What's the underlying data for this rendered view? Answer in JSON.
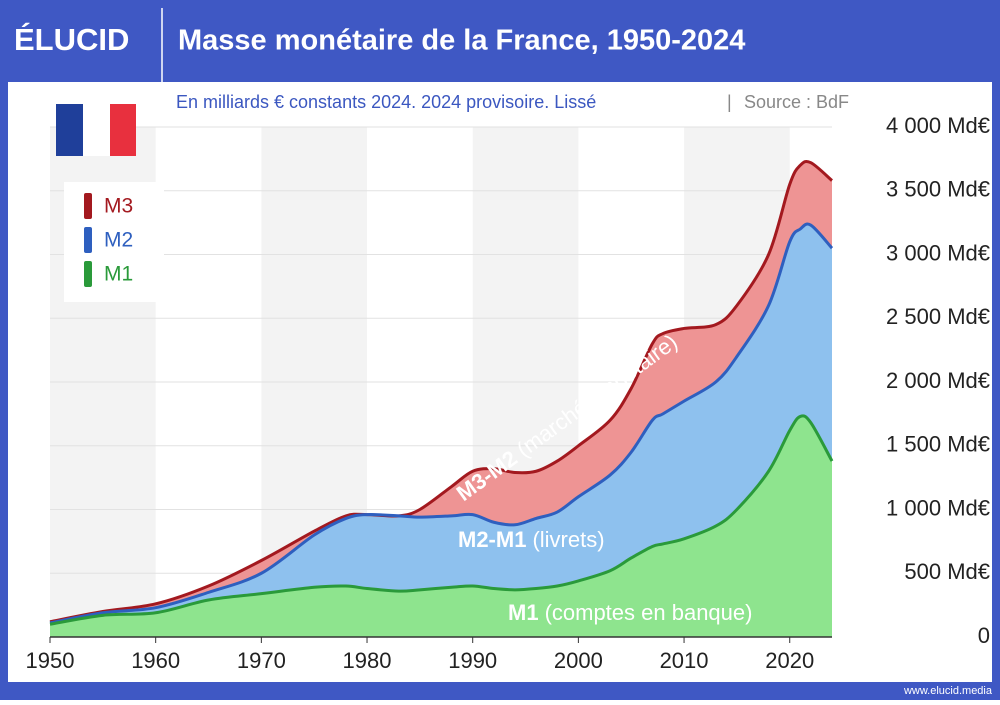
{
  "logo": "ÉLUCID",
  "chart_data": {
    "type": "area",
    "title": "Masse monétaire de la France, 1950-2024",
    "subtitle": "En milliards € constants 2024. 2024 provisoire. Lissé",
    "separator": "|",
    "source": "Source : BdF",
    "x": [
      1950,
      1955,
      1960,
      1965,
      1970,
      1975,
      1978,
      1980,
      1983,
      1985,
      1988,
      1990,
      1992,
      1994,
      1996,
      1998,
      2000,
      2003,
      2005,
      2007,
      2008,
      2010,
      2013,
      2015,
      2018,
      2020,
      2021,
      2022,
      2024
    ],
    "xlim": [
      1950,
      2024
    ],
    "xticks": [
      1950,
      1960,
      1970,
      1980,
      1990,
      2000,
      2010,
      2020
    ],
    "ylim": [
      0,
      4000
    ],
    "yticks": [
      0,
      {
        "value": 500,
        "label": "500 Md€"
      },
      {
        "value": 1000,
        "label": "1 000 Md€"
      },
      {
        "value": 1500,
        "label": "1 500 Md€"
      },
      {
        "value": 2000,
        "label": "2 000 Md€"
      },
      {
        "value": 2500,
        "label": "2 500 Md€"
      },
      {
        "value": 3000,
        "label": "3 000 Md€"
      },
      {
        "value": 3500,
        "label": "3 500 Md€"
      },
      {
        "value": 4000,
        "label": "4 000 Md€"
      }
    ],
    "grid": true,
    "legend": "top-left",
    "series": [
      {
        "name": "M3",
        "color": "#a3191f",
        "fill": "#ee9494",
        "values": [
          120,
          200,
          260,
          400,
          600,
          830,
          950,
          960,
          950,
          1000,
          1180,
          1300,
          1320,
          1290,
          1300,
          1380,
          1500,
          1700,
          1950,
          2300,
          2380,
          2420,
          2450,
          2600,
          3000,
          3550,
          3700,
          3720,
          3580
        ]
      },
      {
        "name": "M2",
        "color": "#2e5fbf",
        "fill": "#8ec1ee",
        "values": [
          110,
          190,
          230,
          350,
          500,
          800,
          930,
          960,
          950,
          940,
          950,
          960,
          900,
          880,
          930,
          980,
          1100,
          1270,
          1450,
          1700,
          1750,
          1850,
          2000,
          2200,
          2600,
          3100,
          3200,
          3230,
          3050
        ]
      },
      {
        "name": "M1",
        "color": "#2a9a3a",
        "fill": "#8ee48e",
        "values": [
          100,
          170,
          190,
          290,
          340,
          390,
          400,
          380,
          360,
          370,
          390,
          400,
          380,
          370,
          380,
          400,
          440,
          520,
          620,
          710,
          730,
          770,
          870,
          1000,
          1300,
          1620,
          1730,
          1680,
          1380
        ]
      }
    ],
    "annotations": [
      {
        "bold": "M3-M2",
        "text": "(marché monétaire)"
      },
      {
        "bold": "M2-M1",
        "text": "(livrets)"
      },
      {
        "bold": "M1",
        "text": "(comptes en banque)"
      }
    ]
  },
  "footer": "www.elucid.media"
}
